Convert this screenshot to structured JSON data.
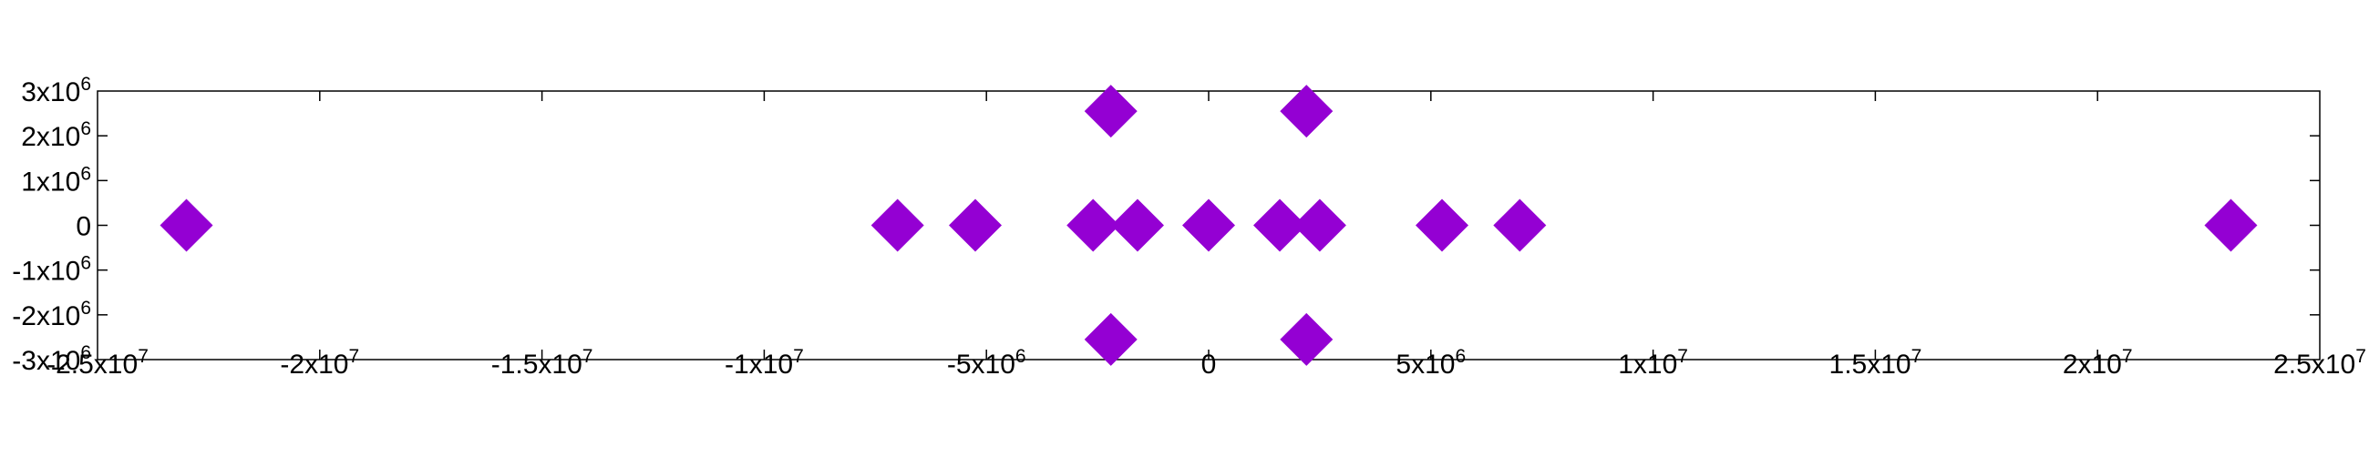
{
  "chart_data": {
    "type": "scatter",
    "title": "",
    "xlabel": "",
    "ylabel": "",
    "xlim": [
      -25000000,
      25000000
    ],
    "ylim": [
      -3000000,
      3000000
    ],
    "grid": false,
    "legend": "none",
    "marker": "diamond",
    "colors": {
      "marker": "#9400d3",
      "axis": "#000000"
    },
    "x_ticks": [
      {
        "value": -25000000,
        "base": "-2.5x10",
        "exp": "7"
      },
      {
        "value": -20000000,
        "base": "-2x10",
        "exp": "7"
      },
      {
        "value": -15000000,
        "base": "-1.5x10",
        "exp": "7"
      },
      {
        "value": -10000000,
        "base": "-1x10",
        "exp": "7"
      },
      {
        "value": -5000000,
        "base": "-5x10",
        "exp": "6"
      },
      {
        "value": 0,
        "base": "0",
        "exp": ""
      },
      {
        "value": 5000000,
        "base": "5x10",
        "exp": "6"
      },
      {
        "value": 10000000,
        "base": "1x10",
        "exp": "7"
      },
      {
        "value": 15000000,
        "base": "1.5x10",
        "exp": "7"
      },
      {
        "value": 20000000,
        "base": "2x10",
        "exp": "7"
      },
      {
        "value": 25000000,
        "base": "2.5x10",
        "exp": "7"
      }
    ],
    "y_ticks": [
      {
        "value": 3000000,
        "base": "3x10",
        "exp": "6"
      },
      {
        "value": 2000000,
        "base": "2x10",
        "exp": "6"
      },
      {
        "value": 1000000,
        "base": "1x10",
        "exp": "6"
      },
      {
        "value": 0,
        "base": "0",
        "exp": ""
      },
      {
        "value": -1000000,
        "base": "-1x10",
        "exp": "6"
      },
      {
        "value": -2000000,
        "base": "-2x10",
        "exp": "6"
      },
      {
        "value": -3000000,
        "base": "-3x10",
        "exp": "6"
      }
    ],
    "series": [
      {
        "points": [
          {
            "x": -23000000,
            "y": 0
          },
          {
            "x": -7000000,
            "y": 0
          },
          {
            "x": -5250000,
            "y": 0
          },
          {
            "x": -2600000,
            "y": 0
          },
          {
            "x": -1600000,
            "y": 0
          },
          {
            "x": 0,
            "y": 0
          },
          {
            "x": 1600000,
            "y": 0
          },
          {
            "x": 2500000,
            "y": 0
          },
          {
            "x": 5250000,
            "y": 0
          },
          {
            "x": 7000000,
            "y": 0
          },
          {
            "x": 23000000,
            "y": 0
          },
          {
            "x": -2200000,
            "y": 2550000
          },
          {
            "x": 2200000,
            "y": 2550000
          },
          {
            "x": -2200000,
            "y": -2550000
          },
          {
            "x": 2200000,
            "y": -2550000
          }
        ]
      }
    ]
  }
}
